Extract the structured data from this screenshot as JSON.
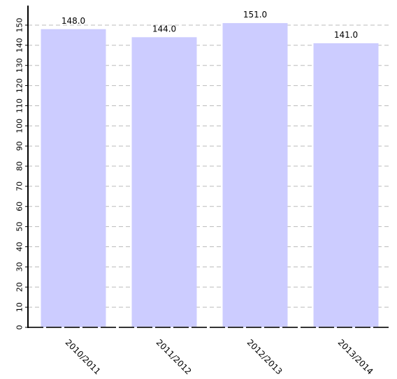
{
  "chart_data": {
    "type": "bar",
    "categories": [
      "2010/2011",
      "2011/2012",
      "2012/2013",
      "2013/2014"
    ],
    "values": [
      148.0,
      144.0,
      151.0,
      141.0
    ],
    "data_labels": [
      "148.0",
      "144.0",
      "151.0",
      "141.0"
    ],
    "ylim": [
      0,
      159
    ],
    "yticks": [
      0,
      10,
      20,
      30,
      40,
      50,
      60,
      70,
      80,
      90,
      100,
      110,
      120,
      130,
      140,
      150
    ],
    "grid": true,
    "colors": {
      "bar": "#ccccff",
      "grid": "#bbbbbb",
      "axis": "#000000"
    }
  }
}
